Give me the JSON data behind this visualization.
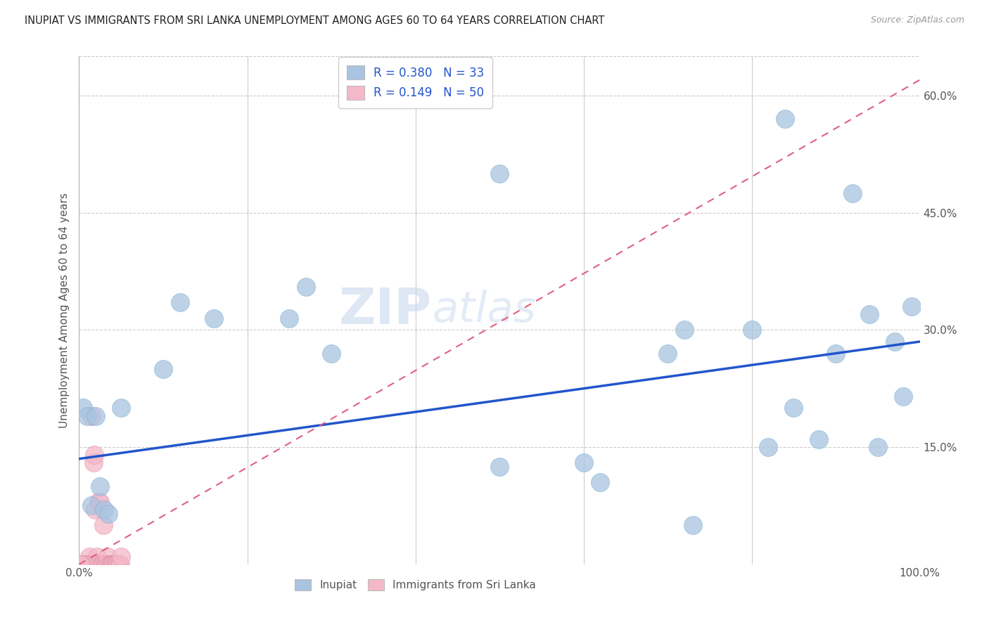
{
  "title": "INUPIAT VS IMMIGRANTS FROM SRI LANKA UNEMPLOYMENT AMONG AGES 60 TO 64 YEARS CORRELATION CHART",
  "source": "Source: ZipAtlas.com",
  "ylabel": "Unemployment Among Ages 60 to 64 years",
  "watermark": "ZIPatlas",
  "xlim": [
    0,
    1.0
  ],
  "ylim": [
    0,
    0.65
  ],
  "inupiat_R": 0.38,
  "inupiat_N": 33,
  "srilanka_R": 0.149,
  "srilanka_N": 50,
  "inupiat_color": "#a8c4e0",
  "inupiat_edge_color": "#7aafd0",
  "inupiat_line_color": "#2255cc",
  "srilanka_color": "#f4b8c8",
  "srilanka_edge_color": "#e090aa",
  "srilanka_line_color": "#e06080",
  "inupiat_x": [
    0.005,
    0.01,
    0.015,
    0.02,
    0.025,
    0.03,
    0.035,
    0.05,
    0.1,
    0.12,
    0.16,
    0.25,
    0.27,
    0.3,
    0.5,
    0.6,
    0.62,
    0.7,
    0.72,
    0.73,
    0.8,
    0.82,
    0.84,
    0.85,
    0.88,
    0.9,
    0.92,
    0.94,
    0.95,
    0.97,
    0.98,
    0.99,
    0.5
  ],
  "inupiat_y": [
    0.2,
    0.19,
    0.075,
    0.19,
    0.1,
    0.07,
    0.065,
    0.2,
    0.25,
    0.335,
    0.315,
    0.315,
    0.355,
    0.27,
    0.125,
    0.13,
    0.105,
    0.27,
    0.3,
    0.05,
    0.3,
    0.15,
    0.57,
    0.2,
    0.16,
    0.27,
    0.475,
    0.32,
    0.15,
    0.285,
    0.215,
    0.33,
    0.5
  ],
  "srilanka_x": [
    0.003,
    0.005,
    0.007,
    0.008,
    0.009,
    0.01,
    0.011,
    0.012,
    0.013,
    0.014,
    0.015,
    0.016,
    0.017,
    0.018,
    0.019,
    0.02,
    0.021,
    0.022,
    0.023,
    0.024,
    0.025,
    0.026,
    0.027,
    0.028,
    0.029,
    0.03,
    0.031,
    0.032,
    0.033,
    0.034,
    0.035,
    0.036,
    0.037,
    0.038,
    0.039,
    0.04,
    0.041,
    0.042,
    0.043,
    0.044,
    0.045,
    0.046,
    0.047,
    0.048,
    0.049,
    0.05,
    0.006,
    0.004,
    0.002,
    0.001
  ],
  "srilanka_y": [
    0.0,
    0.0,
    0.0,
    0.0,
    0.0,
    0.0,
    0.0,
    0.01,
    0.0,
    0.0,
    0.19,
    0.0,
    0.13,
    0.14,
    0.07,
    0.0,
    0.01,
    0.0,
    0.08,
    0.0,
    0.08,
    0.0,
    0.0,
    0.0,
    0.05,
    0.0,
    0.0,
    0.0,
    0.0,
    0.01,
    0.0,
    0.0,
    0.0,
    0.0,
    0.0,
    0.0,
    0.0,
    0.0,
    0.0,
    0.0,
    0.0,
    0.0,
    0.0,
    0.0,
    0.0,
    0.01,
    0.0,
    0.0,
    0.0,
    0.0
  ],
  "background_color": "#ffffff",
  "grid_color": "#cccccc",
  "inupiat_line_y0": 0.135,
  "inupiat_line_y1": 0.285,
  "srilanka_line_y0": 0.0,
  "srilanka_line_y1": 0.62
}
